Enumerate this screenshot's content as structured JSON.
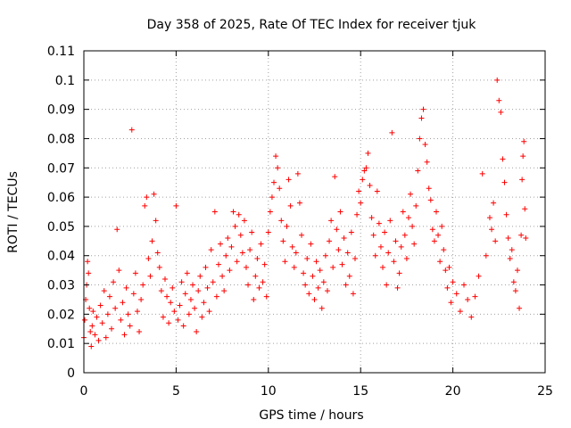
{
  "chart_data": {
    "type": "scatter",
    "title": "Day 358 of 2025, Rate Of TEC Index for receiver tjuk",
    "xlabel": "GPS time / hours",
    "ylabel": "ROTI / TECUs",
    "xlim": [
      0,
      25
    ],
    "ylim": [
      0,
      0.11
    ],
    "xticks": [
      0,
      5,
      10,
      15,
      20,
      25
    ],
    "xtick_labels": [
      "0",
      "5",
      "10",
      "15",
      "20",
      "25"
    ],
    "yticks": [
      0,
      0.01,
      0.02,
      0.03,
      0.04,
      0.05,
      0.06,
      0.07,
      0.08,
      0.09,
      0.1,
      0.11
    ],
    "ytick_labels": [
      "0",
      "0.01",
      "0.02",
      "0.03",
      "0.04",
      "0.05",
      "0.06",
      "0.07",
      "0.08",
      "0.09",
      "0.1",
      "0.11"
    ],
    "grid": true,
    "marker": "+",
    "color": "#ff0000",
    "series": [
      {
        "name": "ROTI",
        "points": [
          [
            0.0,
            0.012
          ],
          [
            0.05,
            0.018
          ],
          [
            0.1,
            0.025
          ],
          [
            0.15,
            0.03
          ],
          [
            0.2,
            0.038
          ],
          [
            0.25,
            0.034
          ],
          [
            0.3,
            0.022
          ],
          [
            0.35,
            0.014
          ],
          [
            0.4,
            0.009
          ],
          [
            0.45,
            0.016
          ],
          [
            0.5,
            0.021
          ],
          [
            0.6,
            0.013
          ],
          [
            0.7,
            0.019
          ],
          [
            0.8,
            0.011
          ],
          [
            0.9,
            0.023
          ],
          [
            1.0,
            0.017
          ],
          [
            1.1,
            0.028
          ],
          [
            1.2,
            0.012
          ],
          [
            1.3,
            0.02
          ],
          [
            1.4,
            0.026
          ],
          [
            1.5,
            0.015
          ],
          [
            1.6,
            0.031
          ],
          [
            1.7,
            0.022
          ],
          [
            1.8,
            0.049
          ],
          [
            1.9,
            0.035
          ],
          [
            2.0,
            0.018
          ],
          [
            2.1,
            0.024
          ],
          [
            2.2,
            0.013
          ],
          [
            2.3,
            0.029
          ],
          [
            2.4,
            0.02
          ],
          [
            2.5,
            0.016
          ],
          [
            2.6,
            0.083
          ],
          [
            2.7,
            0.027
          ],
          [
            2.8,
            0.034
          ],
          [
            2.9,
            0.021
          ],
          [
            3.0,
            0.014
          ],
          [
            3.1,
            0.025
          ],
          [
            3.2,
            0.03
          ],
          [
            3.3,
            0.057
          ],
          [
            3.4,
            0.06
          ],
          [
            3.5,
            0.039
          ],
          [
            3.6,
            0.033
          ],
          [
            3.7,
            0.045
          ],
          [
            3.8,
            0.061
          ],
          [
            3.9,
            0.052
          ],
          [
            4.0,
            0.041
          ],
          [
            4.1,
            0.036
          ],
          [
            4.2,
            0.028
          ],
          [
            4.3,
            0.019
          ],
          [
            4.4,
            0.032
          ],
          [
            4.5,
            0.026
          ],
          [
            4.6,
            0.017
          ],
          [
            4.7,
            0.024
          ],
          [
            4.8,
            0.029
          ],
          [
            4.9,
            0.021
          ],
          [
            5.0,
            0.057
          ],
          [
            5.1,
            0.018
          ],
          [
            5.2,
            0.023
          ],
          [
            5.3,
            0.031
          ],
          [
            5.4,
            0.016
          ],
          [
            5.5,
            0.027
          ],
          [
            5.6,
            0.034
          ],
          [
            5.7,
            0.02
          ],
          [
            5.8,
            0.025
          ],
          [
            5.9,
            0.03
          ],
          [
            6.0,
            0.022
          ],
          [
            6.1,
            0.014
          ],
          [
            6.2,
            0.028
          ],
          [
            6.3,
            0.033
          ],
          [
            6.4,
            0.019
          ],
          [
            6.5,
            0.024
          ],
          [
            6.6,
            0.036
          ],
          [
            6.7,
            0.029
          ],
          [
            6.8,
            0.021
          ],
          [
            6.9,
            0.042
          ],
          [
            7.0,
            0.031
          ],
          [
            7.1,
            0.055
          ],
          [
            7.2,
            0.026
          ],
          [
            7.3,
            0.037
          ],
          [
            7.4,
            0.044
          ],
          [
            7.5,
            0.033
          ],
          [
            7.6,
            0.028
          ],
          [
            7.7,
            0.04
          ],
          [
            7.8,
            0.046
          ],
          [
            7.9,
            0.035
          ],
          [
            8.0,
            0.043
          ],
          [
            8.1,
            0.055
          ],
          [
            8.2,
            0.05
          ],
          [
            8.3,
            0.038
          ],
          [
            8.4,
            0.054
          ],
          [
            8.5,
            0.047
          ],
          [
            8.6,
            0.041
          ],
          [
            8.7,
            0.052
          ],
          [
            8.8,
            0.036
          ],
          [
            8.9,
            0.03
          ],
          [
            9.0,
            0.042
          ],
          [
            9.1,
            0.048
          ],
          [
            9.2,
            0.025
          ],
          [
            9.3,
            0.033
          ],
          [
            9.4,
            0.039
          ],
          [
            9.5,
            0.029
          ],
          [
            9.6,
            0.044
          ],
          [
            9.7,
            0.031
          ],
          [
            9.8,
            0.037
          ],
          [
            9.9,
            0.026
          ],
          [
            10.0,
            0.048
          ],
          [
            10.1,
            0.055
          ],
          [
            10.2,
            0.06
          ],
          [
            10.3,
            0.065
          ],
          [
            10.4,
            0.074
          ],
          [
            10.5,
            0.07
          ],
          [
            10.6,
            0.063
          ],
          [
            10.7,
            0.052
          ],
          [
            10.8,
            0.045
          ],
          [
            10.9,
            0.038
          ],
          [
            11.0,
            0.05
          ],
          [
            11.1,
            0.066
          ],
          [
            11.2,
            0.057
          ],
          [
            11.3,
            0.043
          ],
          [
            11.4,
            0.036
          ],
          [
            11.5,
            0.041
          ],
          [
            11.6,
            0.068
          ],
          [
            11.7,
            0.058
          ],
          [
            11.8,
            0.047
          ],
          [
            11.9,
            0.034
          ],
          [
            12.0,
            0.03
          ],
          [
            12.1,
            0.039
          ],
          [
            12.2,
            0.027
          ],
          [
            12.3,
            0.044
          ],
          [
            12.4,
            0.033
          ],
          [
            12.5,
            0.025
          ],
          [
            12.6,
            0.038
          ],
          [
            12.7,
            0.029
          ],
          [
            12.8,
            0.035
          ],
          [
            12.9,
            0.022
          ],
          [
            13.0,
            0.031
          ],
          [
            13.1,
            0.04
          ],
          [
            13.2,
            0.028
          ],
          [
            13.3,
            0.045
          ],
          [
            13.4,
            0.052
          ],
          [
            13.5,
            0.036
          ],
          [
            13.6,
            0.067
          ],
          [
            13.7,
            0.049
          ],
          [
            13.8,
            0.042
          ],
          [
            13.9,
            0.055
          ],
          [
            14.0,
            0.037
          ],
          [
            14.1,
            0.046
          ],
          [
            14.2,
            0.03
          ],
          [
            14.3,
            0.041
          ],
          [
            14.4,
            0.033
          ],
          [
            14.5,
            0.048
          ],
          [
            14.6,
            0.027
          ],
          [
            14.7,
            0.039
          ],
          [
            14.8,
            0.054
          ],
          [
            14.9,
            0.062
          ],
          [
            15.0,
            0.058
          ],
          [
            15.1,
            0.066
          ],
          [
            15.2,
            0.069
          ],
          [
            15.3,
            0.07
          ],
          [
            15.4,
            0.075
          ],
          [
            15.5,
            0.064
          ],
          [
            15.6,
            0.053
          ],
          [
            15.7,
            0.047
          ],
          [
            15.8,
            0.04
          ],
          [
            15.9,
            0.062
          ],
          [
            16.0,
            0.051
          ],
          [
            16.1,
            0.043
          ],
          [
            16.2,
            0.036
          ],
          [
            16.3,
            0.048
          ],
          [
            16.4,
            0.03
          ],
          [
            16.5,
            0.041
          ],
          [
            16.6,
            0.052
          ],
          [
            16.7,
            0.082
          ],
          [
            16.8,
            0.038
          ],
          [
            16.9,
            0.045
          ],
          [
            17.0,
            0.029
          ],
          [
            17.1,
            0.034
          ],
          [
            17.2,
            0.043
          ],
          [
            17.3,
            0.055
          ],
          [
            17.4,
            0.047
          ],
          [
            17.5,
            0.039
          ],
          [
            17.6,
            0.053
          ],
          [
            17.7,
            0.061
          ],
          [
            17.8,
            0.05
          ],
          [
            17.9,
            0.044
          ],
          [
            18.0,
            0.057
          ],
          [
            18.1,
            0.069
          ],
          [
            18.2,
            0.08
          ],
          [
            18.3,
            0.087
          ],
          [
            18.4,
            0.09
          ],
          [
            18.5,
            0.078
          ],
          [
            18.6,
            0.072
          ],
          [
            18.7,
            0.063
          ],
          [
            18.8,
            0.059
          ],
          [
            18.9,
            0.049
          ],
          [
            19.0,
            0.045
          ],
          [
            19.1,
            0.055
          ],
          [
            19.2,
            0.047
          ],
          [
            19.3,
            0.038
          ],
          [
            19.4,
            0.05
          ],
          [
            19.5,
            0.042
          ],
          [
            19.6,
            0.035
          ],
          [
            19.7,
            0.029
          ],
          [
            19.8,
            0.036
          ],
          [
            19.9,
            0.024
          ],
          [
            20.0,
            0.031
          ],
          [
            20.2,
            0.027
          ],
          [
            20.4,
            0.021
          ],
          [
            20.6,
            0.03
          ],
          [
            20.8,
            0.025
          ],
          [
            21.0,
            0.019
          ],
          [
            21.2,
            0.026
          ],
          [
            21.4,
            0.033
          ],
          [
            21.6,
            0.068
          ],
          [
            21.8,
            0.04
          ],
          [
            22.0,
            0.053
          ],
          [
            22.1,
            0.049
          ],
          [
            22.2,
            0.058
          ],
          [
            22.3,
            0.045
          ],
          [
            22.4,
            0.1
          ],
          [
            22.5,
            0.093
          ],
          [
            22.6,
            0.089
          ],
          [
            22.7,
            0.073
          ],
          [
            22.8,
            0.065
          ],
          [
            22.9,
            0.054
          ],
          [
            23.0,
            0.046
          ],
          [
            23.1,
            0.039
          ],
          [
            23.2,
            0.042
          ],
          [
            23.3,
            0.031
          ],
          [
            23.4,
            0.028
          ],
          [
            23.5,
            0.035
          ],
          [
            23.6,
            0.022
          ],
          [
            23.7,
            0.047
          ],
          [
            23.75,
            0.066
          ],
          [
            23.8,
            0.074
          ],
          [
            23.85,
            0.079
          ],
          [
            23.9,
            0.056
          ],
          [
            23.95,
            0.046
          ]
        ]
      }
    ]
  }
}
